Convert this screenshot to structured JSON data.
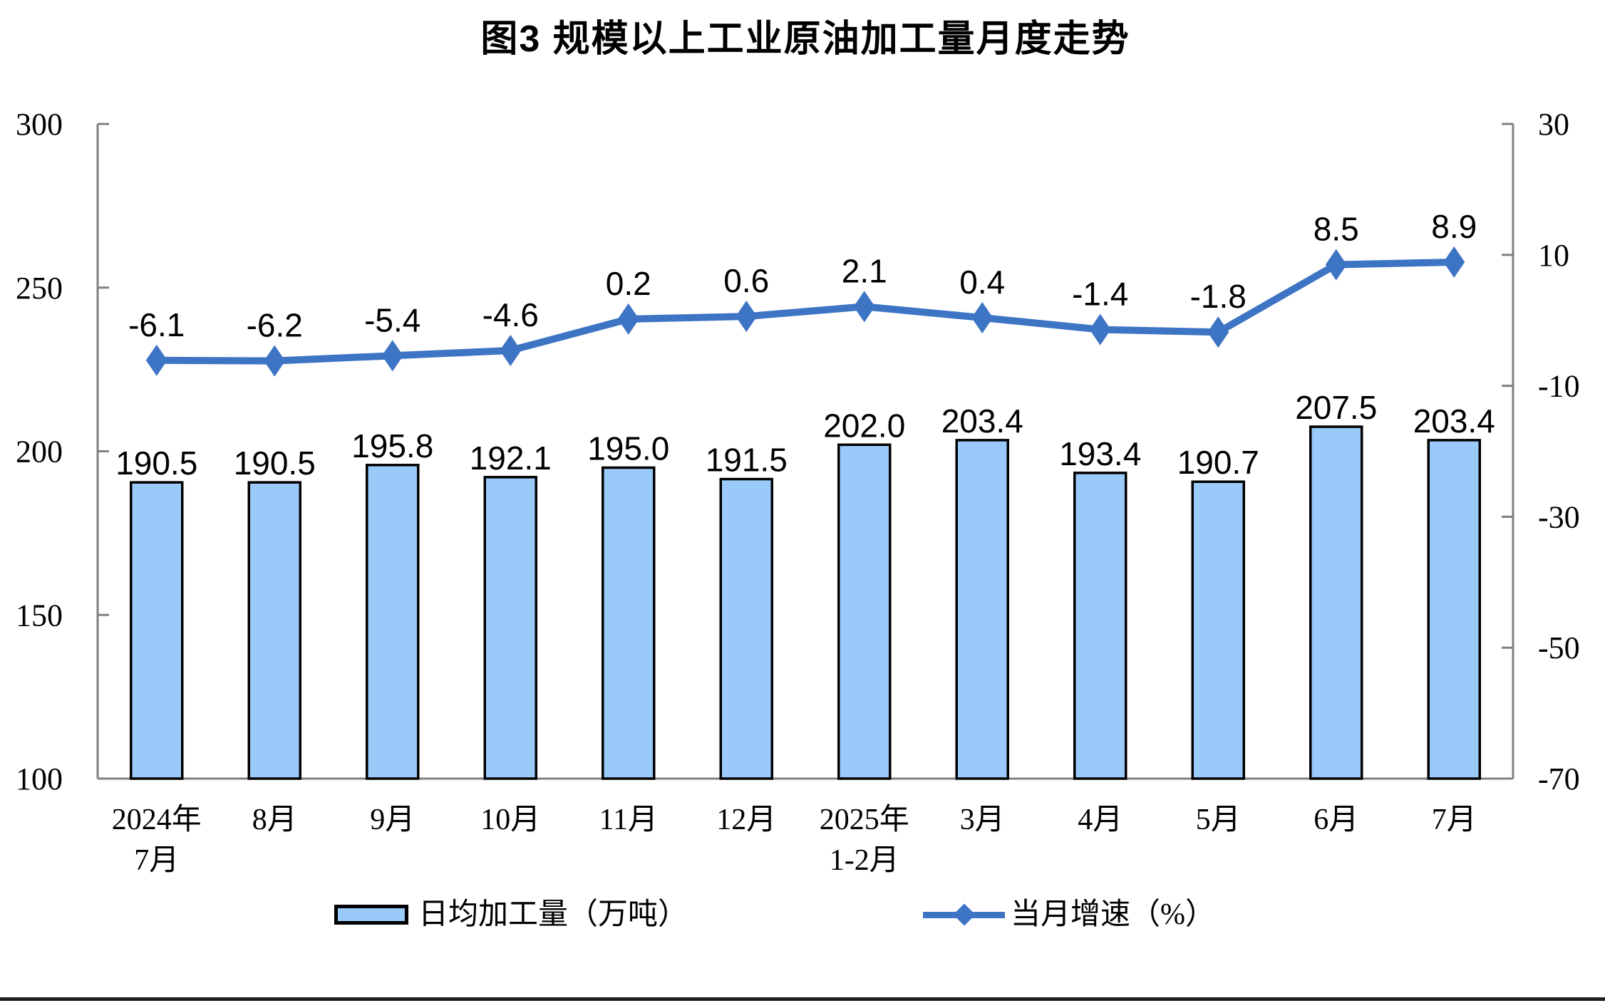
{
  "chart_data": {
    "type": "bar+line",
    "title": "图3 规模以上工业原油加工量月度走势",
    "categories": [
      "2024年\n7月",
      "8月",
      "9月",
      "10月",
      "11月",
      "12月",
      "2025年\n1-2月",
      "3月",
      "4月",
      "5月",
      "6月",
      "7月"
    ],
    "series": [
      {
        "name": "日均加工量（万吨）",
        "type": "bar",
        "axis": "left",
        "values": [
          190.5,
          190.5,
          195.8,
          192.1,
          195.0,
          191.5,
          202.0,
          203.4,
          193.4,
          190.7,
          207.5,
          203.4
        ]
      },
      {
        "name": "当月增速（%）",
        "type": "line",
        "axis": "right",
        "values": [
          -6.1,
          -6.2,
          -5.4,
          -4.6,
          0.2,
          0.6,
          2.1,
          0.4,
          -1.4,
          -1.8,
          8.5,
          8.9
        ]
      }
    ],
    "left_axis": {
      "min": 100,
      "max": 300,
      "ticks": [
        300,
        250,
        200,
        150,
        100
      ]
    },
    "right_axis": {
      "min": -70,
      "max": 30,
      "ticks": [
        30,
        10,
        -10,
        -30,
        -50,
        -70
      ]
    },
    "grid": false,
    "data_labels": true,
    "legend_position": "bottom",
    "colors": {
      "bar_fill": "#9ACAFA",
      "bar_border": "#000000",
      "line": "#3E74C4",
      "axis": "#808080",
      "text": "#000000"
    }
  }
}
